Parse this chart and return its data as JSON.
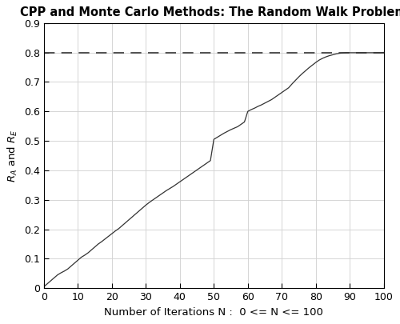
{
  "title": "CPP and Monte Carlo Methods: The Random Walk Problem",
  "xlabel": "Number of Iterations N :  0 <= N <= 100",
  "ylabel": "R_A and R_E",
  "xlim": [
    0,
    100
  ],
  "ylim": [
    0,
    0.9
  ],
  "xticks": [
    0,
    10,
    20,
    30,
    40,
    50,
    60,
    70,
    80,
    90,
    100
  ],
  "yticks": [
    0,
    0.1,
    0.2,
    0.3,
    0.4,
    0.5,
    0.6,
    0.7,
    0.8,
    0.9
  ],
  "dashed_line_y": 0.8,
  "line_color": "#333333",
  "dashed_color": "#333333",
  "background_color": "#ffffff",
  "grid_color": "#d0d0d0",
  "x_data": [
    0,
    1,
    2,
    3,
    4,
    5,
    6,
    7,
    8,
    9,
    10,
    11,
    12,
    13,
    14,
    15,
    16,
    17,
    18,
    19,
    20,
    21,
    22,
    23,
    24,
    25,
    26,
    27,
    28,
    29,
    30,
    31,
    32,
    33,
    34,
    35,
    36,
    37,
    38,
    39,
    40,
    41,
    42,
    43,
    44,
    45,
    46,
    47,
    48,
    49,
    50,
    51,
    52,
    53,
    54,
    55,
    56,
    57,
    58,
    59,
    60,
    61,
    62,
    63,
    64,
    65,
    66,
    67,
    68,
    69,
    70,
    71,
    72,
    73,
    74,
    75,
    76,
    77,
    78,
    79,
    80,
    81,
    82,
    83,
    84,
    85,
    86,
    87,
    88,
    89,
    90,
    91,
    92,
    93,
    94,
    95,
    96,
    97,
    98,
    99,
    100
  ],
  "y_data": [
    0.005,
    0.015,
    0.025,
    0.035,
    0.045,
    0.052,
    0.058,
    0.065,
    0.075,
    0.085,
    0.095,
    0.105,
    0.112,
    0.12,
    0.13,
    0.14,
    0.15,
    0.158,
    0.167,
    0.176,
    0.185,
    0.194,
    0.202,
    0.212,
    0.222,
    0.232,
    0.242,
    0.252,
    0.262,
    0.272,
    0.282,
    0.291,
    0.299,
    0.307,
    0.315,
    0.323,
    0.331,
    0.338,
    0.345,
    0.353,
    0.361,
    0.369,
    0.377,
    0.385,
    0.393,
    0.401,
    0.409,
    0.417,
    0.425,
    0.433,
    0.505,
    0.512,
    0.519,
    0.526,
    0.532,
    0.538,
    0.543,
    0.548,
    0.556,
    0.564,
    0.6,
    0.606,
    0.611,
    0.617,
    0.622,
    0.628,
    0.634,
    0.64,
    0.648,
    0.656,
    0.664,
    0.672,
    0.68,
    0.693,
    0.705,
    0.717,
    0.728,
    0.738,
    0.748,
    0.757,
    0.766,
    0.774,
    0.78,
    0.785,
    0.789,
    0.792,
    0.795,
    0.797,
    0.798,
    0.799,
    0.799,
    0.799,
    0.799,
    0.799,
    0.799,
    0.799,
    0.799,
    0.799,
    0.799,
    0.799,
    0.8
  ]
}
